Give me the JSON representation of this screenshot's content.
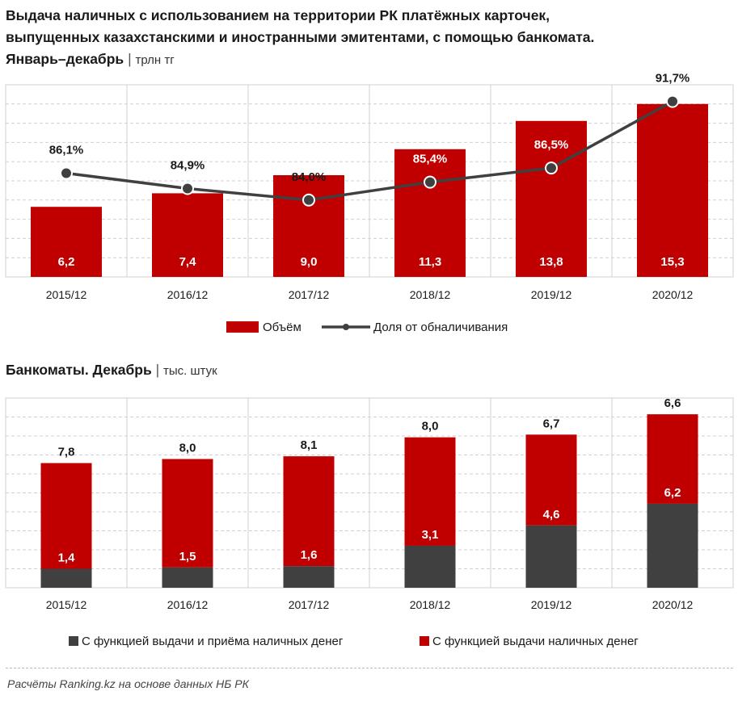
{
  "title": {
    "line1": "Выдача наличных с использованием на территории РК платёжных  карточек,",
    "line2": "выпущенных казахстанскими и иностранными эмитентами, с помощью банкомата.",
    "line3": "Январь–декабрь",
    "separator": "|",
    "unit": "трлн тг"
  },
  "subtitle": {
    "text": "Банкоматы. Декабрь",
    "separator": "|",
    "unit": "тыс. штук"
  },
  "source": "Расчёты Ranking.kz на основе данных  НБ РК",
  "colors": {
    "red": "#c00000",
    "dark": "#404040",
    "line": "#404040",
    "grid": "#d0d0d0"
  },
  "chart_data": [
    {
      "type": "bar",
      "title": "Выдача наличных с помощью банкомата, трлн тг",
      "categories": [
        "2015/12",
        "2016/12",
        "2017/12",
        "2018/12",
        "2019/12",
        "2020/12"
      ],
      "series": [
        {
          "name": "Объём",
          "kind": "bar",
          "values": [
            6.2,
            7.4,
            9.0,
            11.3,
            13.8,
            15.3
          ],
          "labels": [
            "6,2",
            "7,4",
            "9,0",
            "11,3",
            "13,8",
            "15,3"
          ]
        },
        {
          "name": "Доля от обналичивания",
          "kind": "line",
          "values": [
            86.1,
            84.9,
            84.0,
            85.4,
            86.5,
            91.7
          ],
          "labels": [
            "86,1%",
            "84,9%",
            "84,0%",
            "85,4%",
            "86,5%",
            "91,7%"
          ]
        }
      ],
      "legend": [
        "Объём",
        "Доля от обналичивания"
      ],
      "ylim_bars": [
        0,
        17
      ],
      "ylim_line": [
        78,
        93
      ],
      "legend_position": "bottom"
    },
    {
      "type": "bar",
      "title": "Банкоматы. Декабрь, тыс. штук",
      "stacked": true,
      "categories": [
        "2015/12",
        "2016/12",
        "2017/12",
        "2018/12",
        "2019/12",
        "2020/12"
      ],
      "series": [
        {
          "name": "С функцией выдачи и приёма наличных денег",
          "values": [
            1.4,
            1.5,
            1.6,
            3.1,
            4.6,
            6.2
          ],
          "labels": [
            "1,4",
            "1,5",
            "1,6",
            "3,1",
            "4,6",
            "6,2"
          ]
        },
        {
          "name": "С функцией выдачи наличных денег",
          "values": [
            7.8,
            8.0,
            8.1,
            8.0,
            6.7,
            6.6
          ],
          "labels": [
            "7,8",
            "8,0",
            "8,1",
            "8,0",
            "6,7",
            "6,6"
          ]
        }
      ],
      "legend": [
        "С функцией выдачи и приёма наличных денег",
        "С функцией выдачи наличных денег"
      ],
      "ylim": [
        0,
        14
      ],
      "legend_position": "bottom"
    }
  ]
}
